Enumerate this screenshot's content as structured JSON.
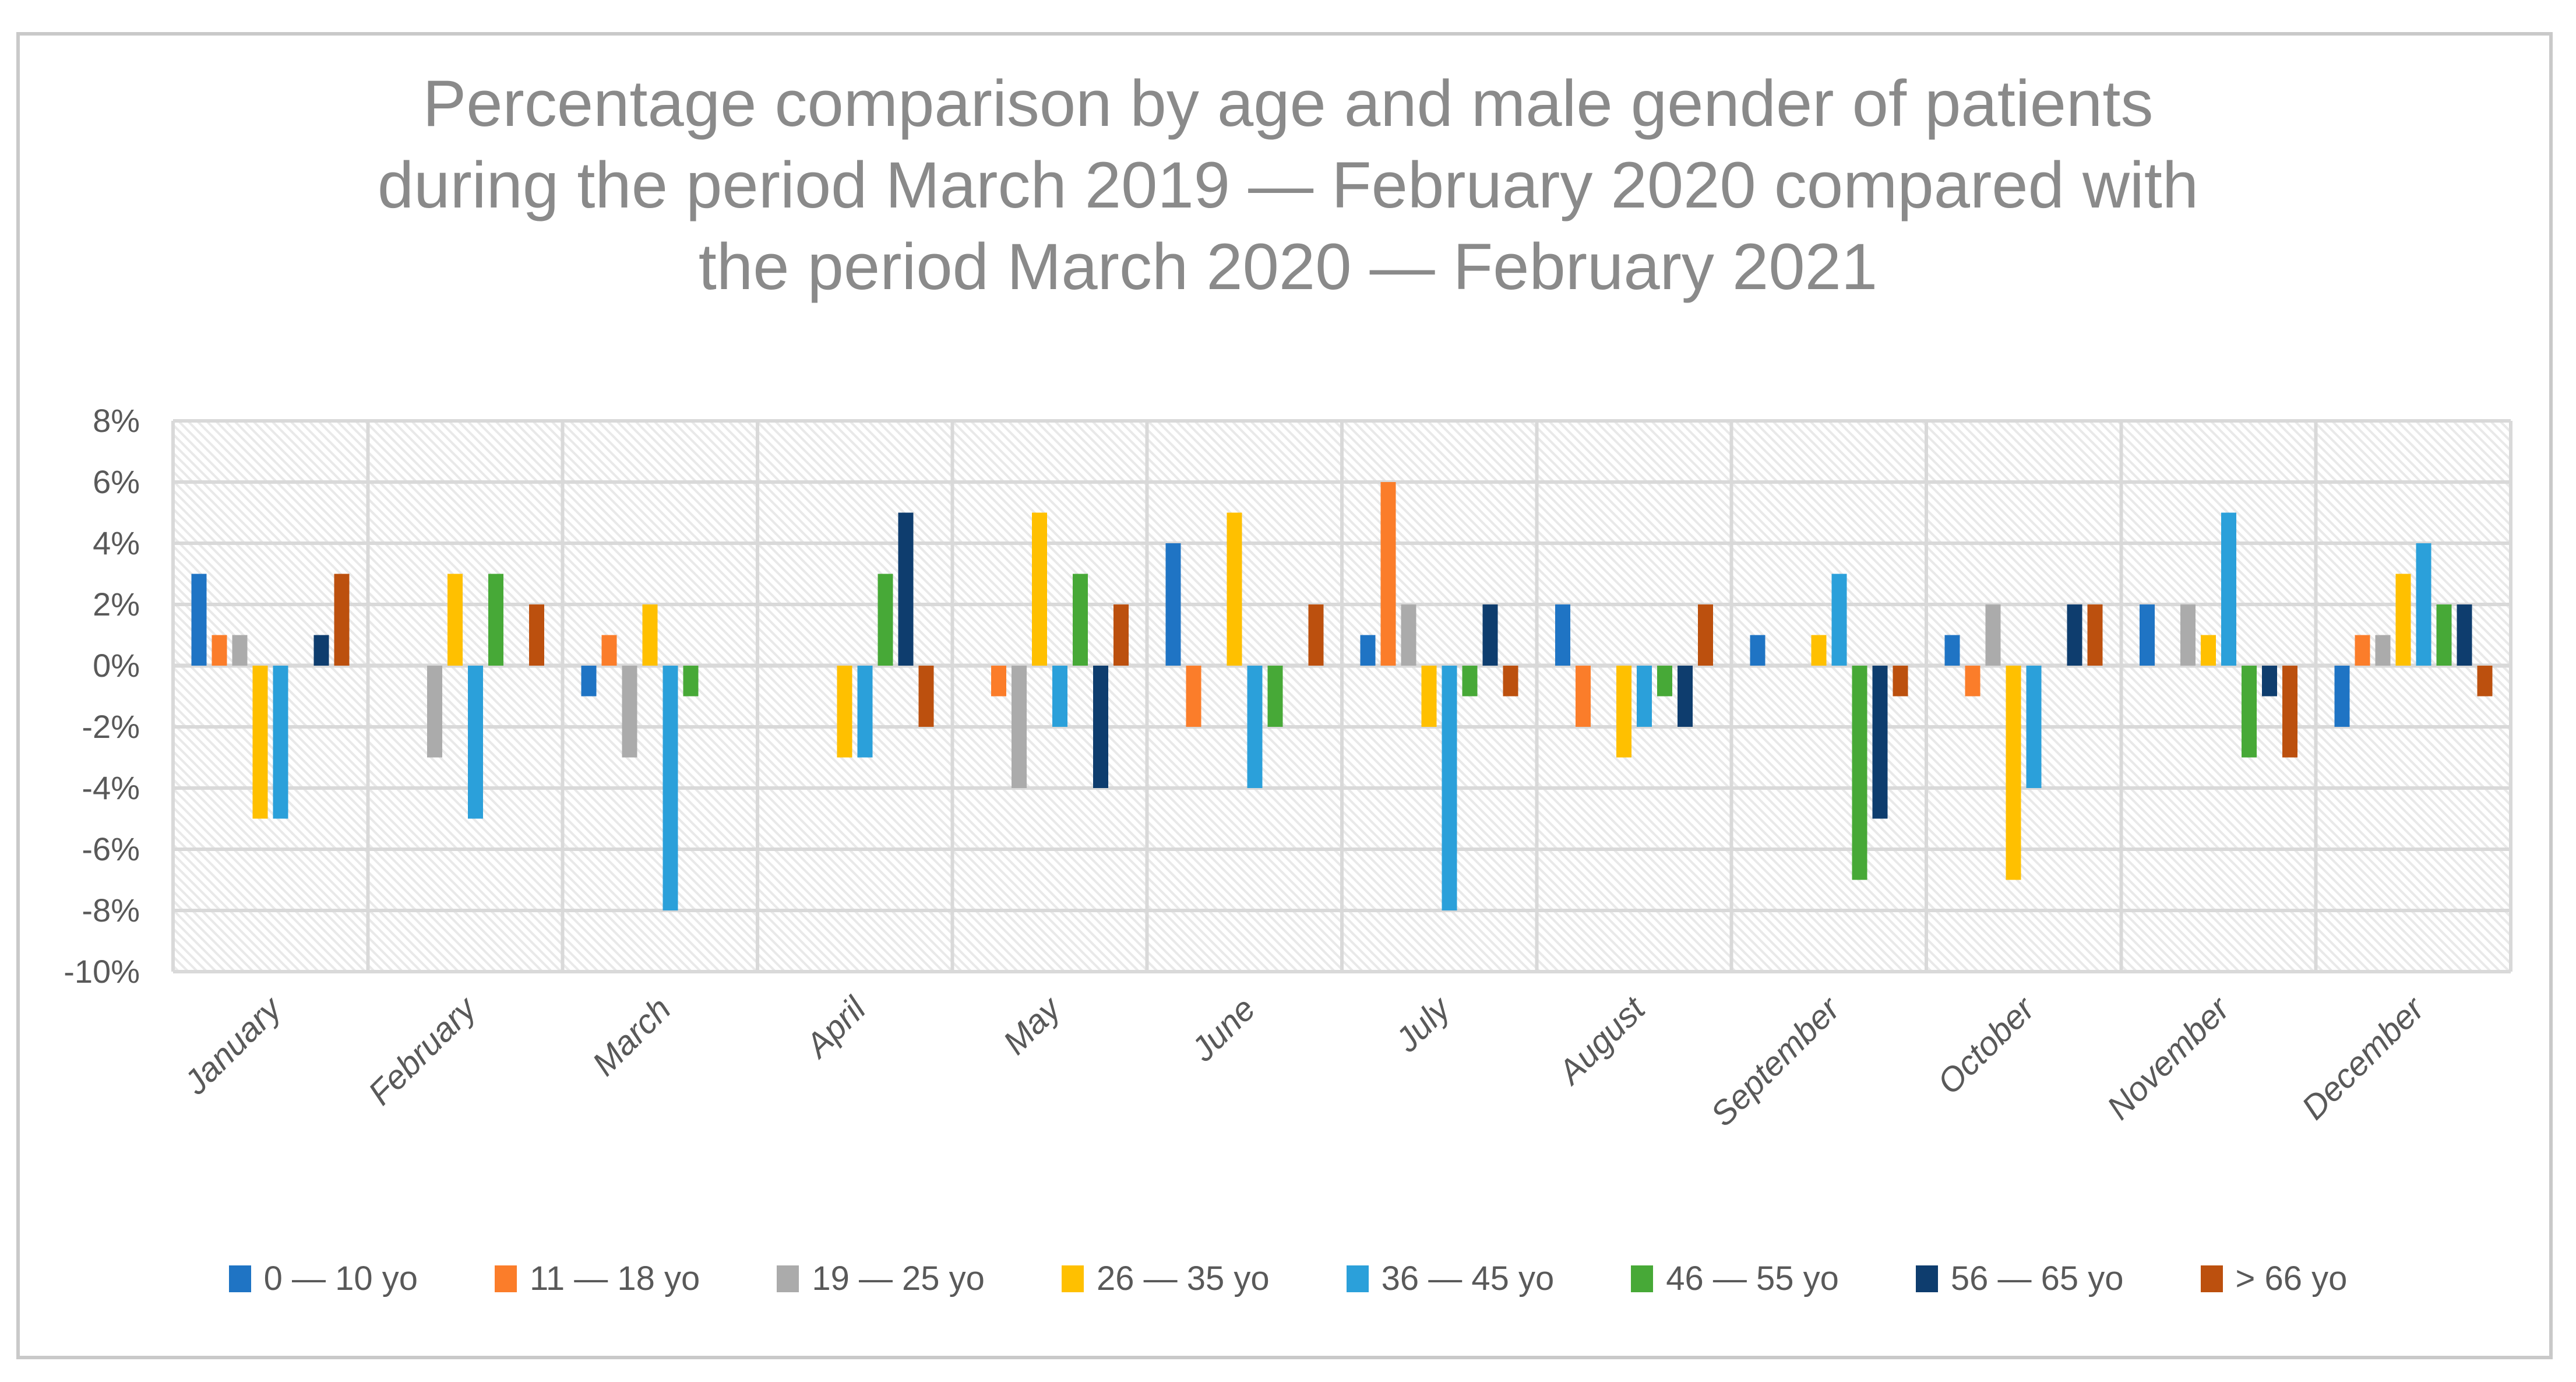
{
  "title": {
    "lines": [
      "Percentage comparison by age and male gender of patients",
      "during the period March 2019 — February 2020 compared with",
      "the period March 2020 — February 2021"
    ],
    "color": "#8A8A8A"
  },
  "y_axis": {
    "tick_labels": [
      "8%",
      "6%",
      "4%",
      "2%",
      "0%",
      "-2%",
      "-4%",
      "-6%",
      "-8%",
      "-10%"
    ]
  },
  "chart_data": {
    "type": "bar",
    "title": "Percentage comparison by age and male gender of patients during the period March 2019 — February 2020 compared with the period March 2020 — February 2021",
    "categories": [
      "January",
      "February",
      "March",
      "April",
      "May",
      "June",
      "July",
      "August",
      "September",
      "October",
      "November",
      "December"
    ],
    "series": [
      {
        "name": "0 — 10 yo",
        "color": "#1F74C4",
        "values": [
          3,
          0,
          -1,
          0,
          0,
          4,
          1,
          2,
          1,
          1,
          2,
          -2
        ]
      },
      {
        "name": "11 — 18 yo",
        "color": "#FB7D2A",
        "values": [
          1,
          0,
          1,
          0,
          -1,
          -2,
          6,
          -2,
          0,
          -1,
          0,
          1
        ]
      },
      {
        "name": "19 — 25 yo",
        "color": "#ABABAB",
        "values": [
          1,
          -3,
          -3,
          0,
          -4,
          0,
          2,
          0,
          0,
          2,
          2,
          1
        ]
      },
      {
        "name": "26 — 35 yo",
        "color": "#FFC000",
        "values": [
          -5,
          3,
          2,
          -3,
          5,
          5,
          -2,
          -3,
          1,
          -7,
          1,
          3
        ]
      },
      {
        "name": "36 — 45 yo",
        "color": "#2BA0DA",
        "values": [
          -5,
          -5,
          -8,
          -3,
          -2,
          -4,
          -8,
          -2,
          3,
          -4,
          5,
          4
        ]
      },
      {
        "name": "46 — 55 yo",
        "color": "#47A937",
        "values": [
          0,
          3,
          -1,
          3,
          3,
          -2,
          -1,
          -1,
          -7,
          0,
          -3,
          2
        ]
      },
      {
        "name": "56 — 65 yo",
        "color": "#0E3D6E",
        "values": [
          1,
          0,
          0,
          5,
          -4,
          0,
          2,
          -2,
          -5,
          2,
          -1,
          2
        ]
      },
      {
        "name": "> 66 yo",
        "color": "#BC500E",
        "values": [
          3,
          2,
          0,
          -2,
          2,
          2,
          -1,
          2,
          -1,
          2,
          -3,
          -1
        ]
      }
    ],
    "ylim": [
      -10,
      8
    ],
    "ytick_step": 2,
    "ytick_suffix": "%",
    "grid": true,
    "gridline_color": "#D9D9D9",
    "axis_label_color": "#595959",
    "plot_background": "light-diagonal-hatch",
    "legend_position": "bottom"
  }
}
